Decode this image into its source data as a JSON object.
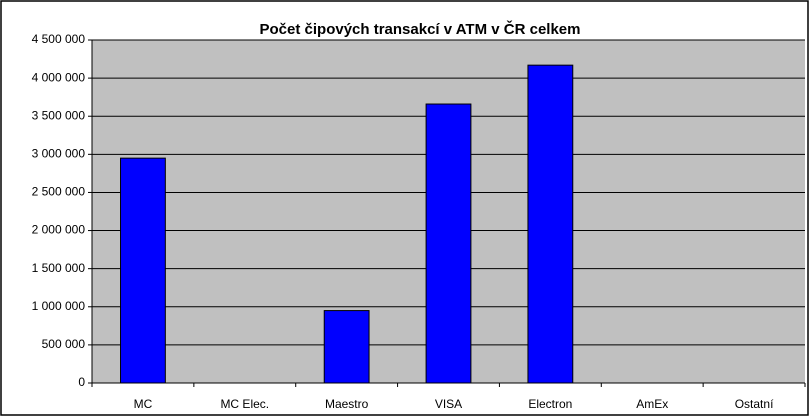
{
  "chart_data": {
    "type": "bar",
    "title": "Počet čipových transakcí v ATM v ČR celkem",
    "categories": [
      "MC",
      "MC Elec.",
      "Maestro",
      "VISA",
      "Electron",
      "AmEx",
      "Ostatní"
    ],
    "values": [
      2950000,
      0,
      950000,
      3660000,
      4170000,
      0,
      0
    ],
    "color": "#0000ff",
    "ylim": [
      0,
      4500000
    ],
    "yticks": [
      0,
      {
        "value": 500000,
        "label": "500 000"
      },
      {
        "value": 1000000,
        "label": "1 000 000"
      },
      {
        "value": 1500000,
        "label": "1 500 000"
      },
      {
        "value": 2000000,
        "label": "2 000 000"
      },
      {
        "value": 2500000,
        "label": "2 500 000"
      },
      {
        "value": 3000000,
        "label": "3 000 000"
      },
      {
        "value": 3500000,
        "label": "3 500 000"
      },
      {
        "value": 4000000,
        "label": "4 000 000"
      },
      {
        "value": 4500000,
        "label": "4 500 000"
      }
    ],
    "grid": true
  }
}
